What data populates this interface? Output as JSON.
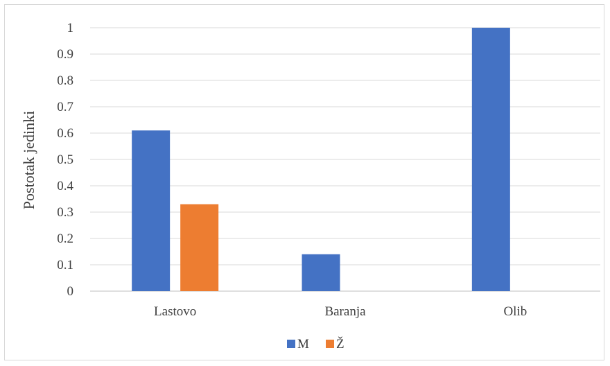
{
  "chart_data": {
    "type": "bar",
    "title": "",
    "xlabel": "",
    "ylabel": "Postotak jedinki",
    "categories": [
      "Lastovo",
      "Baranja",
      "Olib"
    ],
    "series": [
      {
        "name": "M",
        "values": [
          0.61,
          0.14,
          1.0
        ],
        "color": "#4472c4"
      },
      {
        "name": "Ž",
        "values": [
          0.33,
          0.0,
          0.0
        ],
        "color": "#ed7d31"
      }
    ],
    "ylim": [
      0,
      1
    ],
    "yticks": [
      "0",
      "0.1",
      "0.2",
      "0.3",
      "0.4",
      "0.5",
      "0.6",
      "0.7",
      "0.8",
      "0.9",
      "1"
    ],
    "grid": true,
    "legend_position": "bottom"
  }
}
